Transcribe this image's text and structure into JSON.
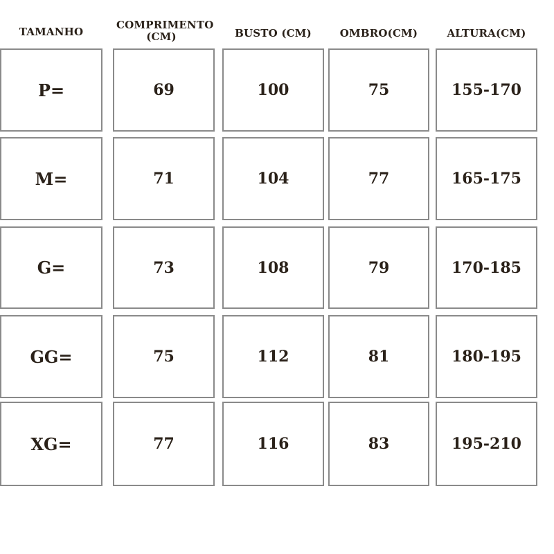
{
  "headers": [
    "TAMANHO",
    "COMPRIMENTO (CM)",
    "BUSTO (CM)",
    "OMBRO(CM)",
    "ALTURA(CM)"
  ],
  "rows": [
    [
      "P=",
      "69",
      "100",
      "75",
      "155-170"
    ],
    [
      "M=",
      "71",
      "104",
      "77",
      "165-175"
    ],
    [
      "G=",
      "73",
      "108",
      "79",
      "170-185"
    ],
    [
      "GG=",
      "75",
      "112",
      "81",
      "180-195"
    ],
    [
      "XG=",
      "77",
      "116",
      "83",
      "195-210"
    ]
  ],
  "colors": {
    "text": "#2a2119",
    "border": "#8a8a8a"
  }
}
